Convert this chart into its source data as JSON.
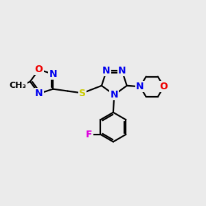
{
  "bg_color": "#ebebeb",
  "atom_colors": {
    "C": "#000000",
    "N": "#0000ee",
    "O": "#ee0000",
    "S": "#cccc00",
    "F": "#dd00dd",
    "H": "#000000"
  },
  "bond_color": "#000000",
  "bond_width": 1.6,
  "font_size": 10,
  "font_size_small": 9
}
